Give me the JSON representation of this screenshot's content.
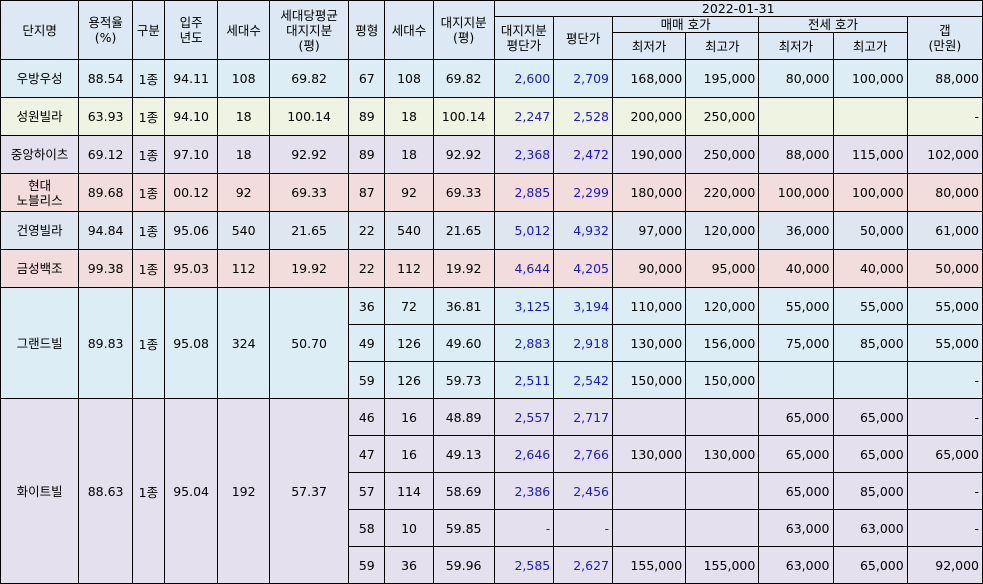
{
  "header": {
    "complex": "단지명",
    "far": "용적율\n(%)",
    "zone": "구분",
    "built": "입주\n년도",
    "units": "세대수",
    "avg_land": "세대당평균\n대지지분\n(평)",
    "pyeong": "평형",
    "type_units": "세대수",
    "land": "대지지분\n(평)",
    "date": "2022-01-31",
    "land_price": "대지지분\n평단가",
    "price_per": "평단가",
    "sale": "매매 호가",
    "jeonse": "전세 호가",
    "gap": "갭\n(만원)",
    "min": "최저가",
    "max": "최고가"
  },
  "complexes": [
    {
      "name": "우방우성",
      "far": "88.54",
      "zone": "1종",
      "built": "94.11",
      "units": "108",
      "avg_land": "69.82",
      "rows": [
        {
          "pyeong": "67",
          "units": "108",
          "land": "69.82",
          "land_price": "2,600",
          "price_per": "2,709",
          "sale_min": "168,000",
          "sale_max": "195,000",
          "j_min": "80,000",
          "j_max": "100,000",
          "gap": "88,000"
        }
      ]
    },
    {
      "name": "성원빌라",
      "far": "63.93",
      "zone": "1종",
      "built": "94.10",
      "units": "18",
      "avg_land": "100.14",
      "rows": [
        {
          "pyeong": "89",
          "units": "18",
          "land": "100.14",
          "land_price": "2,247",
          "price_per": "2,528",
          "sale_min": "200,000",
          "sale_max": "250,000",
          "j_min": "",
          "j_max": "",
          "gap": "-"
        }
      ]
    },
    {
      "name": "중앙하이츠",
      "far": "69.12",
      "zone": "1종",
      "built": "97.10",
      "units": "18",
      "avg_land": "92.92",
      "rows": [
        {
          "pyeong": "89",
          "units": "18",
          "land": "92.92",
          "land_price": "2,368",
          "price_per": "2,472",
          "sale_min": "190,000",
          "sale_max": "250,000",
          "j_min": "88,000",
          "j_max": "115,000",
          "gap": "102,000"
        }
      ]
    },
    {
      "name": "현대\n노블리스",
      "far": "89.68",
      "zone": "1종",
      "built": "00.12",
      "units": "92",
      "avg_land": "69.33",
      "rows": [
        {
          "pyeong": "87",
          "units": "92",
          "land": "69.33",
          "land_price": "2,885",
          "price_per": "2,299",
          "sale_min": "180,000",
          "sale_max": "220,000",
          "j_min": "100,000",
          "j_max": "100,000",
          "gap": "80,000"
        }
      ]
    },
    {
      "name": "건영빌라",
      "far": "94.84",
      "zone": "1종",
      "built": "95.06",
      "units": "540",
      "avg_land": "21.65",
      "rows": [
        {
          "pyeong": "22",
          "units": "540",
          "land": "21.65",
          "land_price": "5,012",
          "price_per": "4,932",
          "sale_min": "97,000",
          "sale_max": "120,000",
          "j_min": "36,000",
          "j_max": "50,000",
          "gap": "61,000"
        }
      ]
    },
    {
      "name": "금성백조",
      "far": "99.38",
      "zone": "1종",
      "built": "95.03",
      "units": "112",
      "avg_land": "19.92",
      "rows": [
        {
          "pyeong": "22",
          "units": "112",
          "land": "19.92",
          "land_price": "4,644",
          "price_per": "4,205",
          "sale_min": "90,000",
          "sale_max": "95,000",
          "j_min": "40,000",
          "j_max": "40,000",
          "gap": "50,000"
        }
      ]
    },
    {
      "name": "그랜드빌",
      "far": "89.83",
      "zone": "1종",
      "built": "95.08",
      "units": "324",
      "avg_land": "50.70",
      "rows": [
        {
          "pyeong": "36",
          "units": "72",
          "land": "36.81",
          "land_price": "3,125",
          "price_per": "3,194",
          "sale_min": "110,000",
          "sale_max": "120,000",
          "j_min": "55,000",
          "j_max": "55,000",
          "gap": "55,000"
        },
        {
          "pyeong": "49",
          "units": "126",
          "land": "49.60",
          "land_price": "2,883",
          "price_per": "2,918",
          "sale_min": "130,000",
          "sale_max": "156,000",
          "j_min": "75,000",
          "j_max": "85,000",
          "gap": "55,000"
        },
        {
          "pyeong": "59",
          "units": "126",
          "land": "59.73",
          "land_price": "2,511",
          "price_per": "2,542",
          "sale_min": "150,000",
          "sale_max": "150,000",
          "j_min": "",
          "j_max": "",
          "gap": "-"
        }
      ]
    },
    {
      "name": "화이트빌",
      "far": "88.63",
      "zone": "1종",
      "built": "95.04",
      "units": "192",
      "avg_land": "57.37",
      "rows": [
        {
          "pyeong": "46",
          "units": "16",
          "land": "48.89",
          "land_price": "2,557",
          "price_per": "2,717",
          "sale_min": "",
          "sale_max": "",
          "j_min": "65,000",
          "j_max": "65,000",
          "gap": "-"
        },
        {
          "pyeong": "47",
          "units": "16",
          "land": "49.13",
          "land_price": "2,646",
          "price_per": "2,766",
          "sale_min": "130,000",
          "sale_max": "130,000",
          "j_min": "65,000",
          "j_max": "65,000",
          "gap": "65,000"
        },
        {
          "pyeong": "57",
          "units": "114",
          "land": "58.69",
          "land_price": "2,386",
          "price_per": "2,456",
          "sale_min": "",
          "sale_max": "",
          "j_min": "65,000",
          "j_max": "85,000",
          "gap": "-"
        },
        {
          "pyeong": "58",
          "units": "10",
          "land": "59.85",
          "land_price": "-",
          "price_per": "-",
          "sale_min": "",
          "sale_max": "",
          "j_min": "63,000",
          "j_max": "63,000",
          "gap": "-"
        },
        {
          "pyeong": "59",
          "units": "36",
          "land": "59.96",
          "land_price": "2,585",
          "price_per": "2,627",
          "sale_min": "155,000",
          "sale_max": "155,000",
          "j_min": "63,000",
          "j_max": "65,000",
          "gap": "92,000"
        }
      ]
    }
  ],
  "colors": {
    "header": "#dce9f4",
    "blue_text": "#1b1bc8"
  }
}
